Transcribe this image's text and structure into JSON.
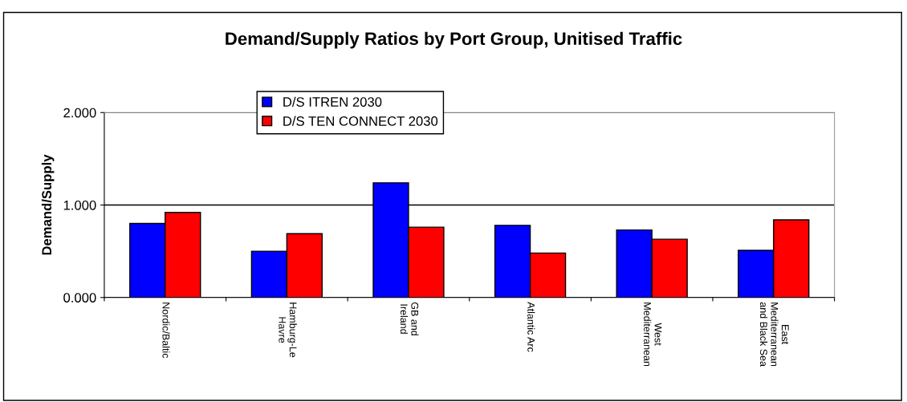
{
  "chart_data": {
    "type": "bar",
    "title": "Demand/Supply Ratios by Port Group, Unitised Traffic",
    "ylabel": "Demand/Supply",
    "categories": [
      "Nordic/Baltic",
      "Hamburg-Le\nHavre",
      "GB and\nIreland",
      "Atlantic Arc",
      "West\nMediterranean",
      "East\nMediterranean\nand Black Sea"
    ],
    "series": [
      {
        "name": "D/S ITREN 2030",
        "color": "#0000ff",
        "values": [
          0.8,
          0.5,
          1.24,
          0.78,
          0.73,
          0.51
        ]
      },
      {
        "name": "D/S TEN CONNECT 2030",
        "color": "#ff0000",
        "values": [
          0.92,
          0.69,
          0.76,
          0.48,
          0.63,
          0.84
        ]
      }
    ],
    "ylim": [
      0,
      2
    ],
    "yticks": [
      {
        "value": 0,
        "label": "0.000"
      },
      {
        "value": 1,
        "label": "1.000"
      },
      {
        "value": 2,
        "label": "2.000"
      }
    ],
    "grid": "y",
    "legend": "top left"
  }
}
